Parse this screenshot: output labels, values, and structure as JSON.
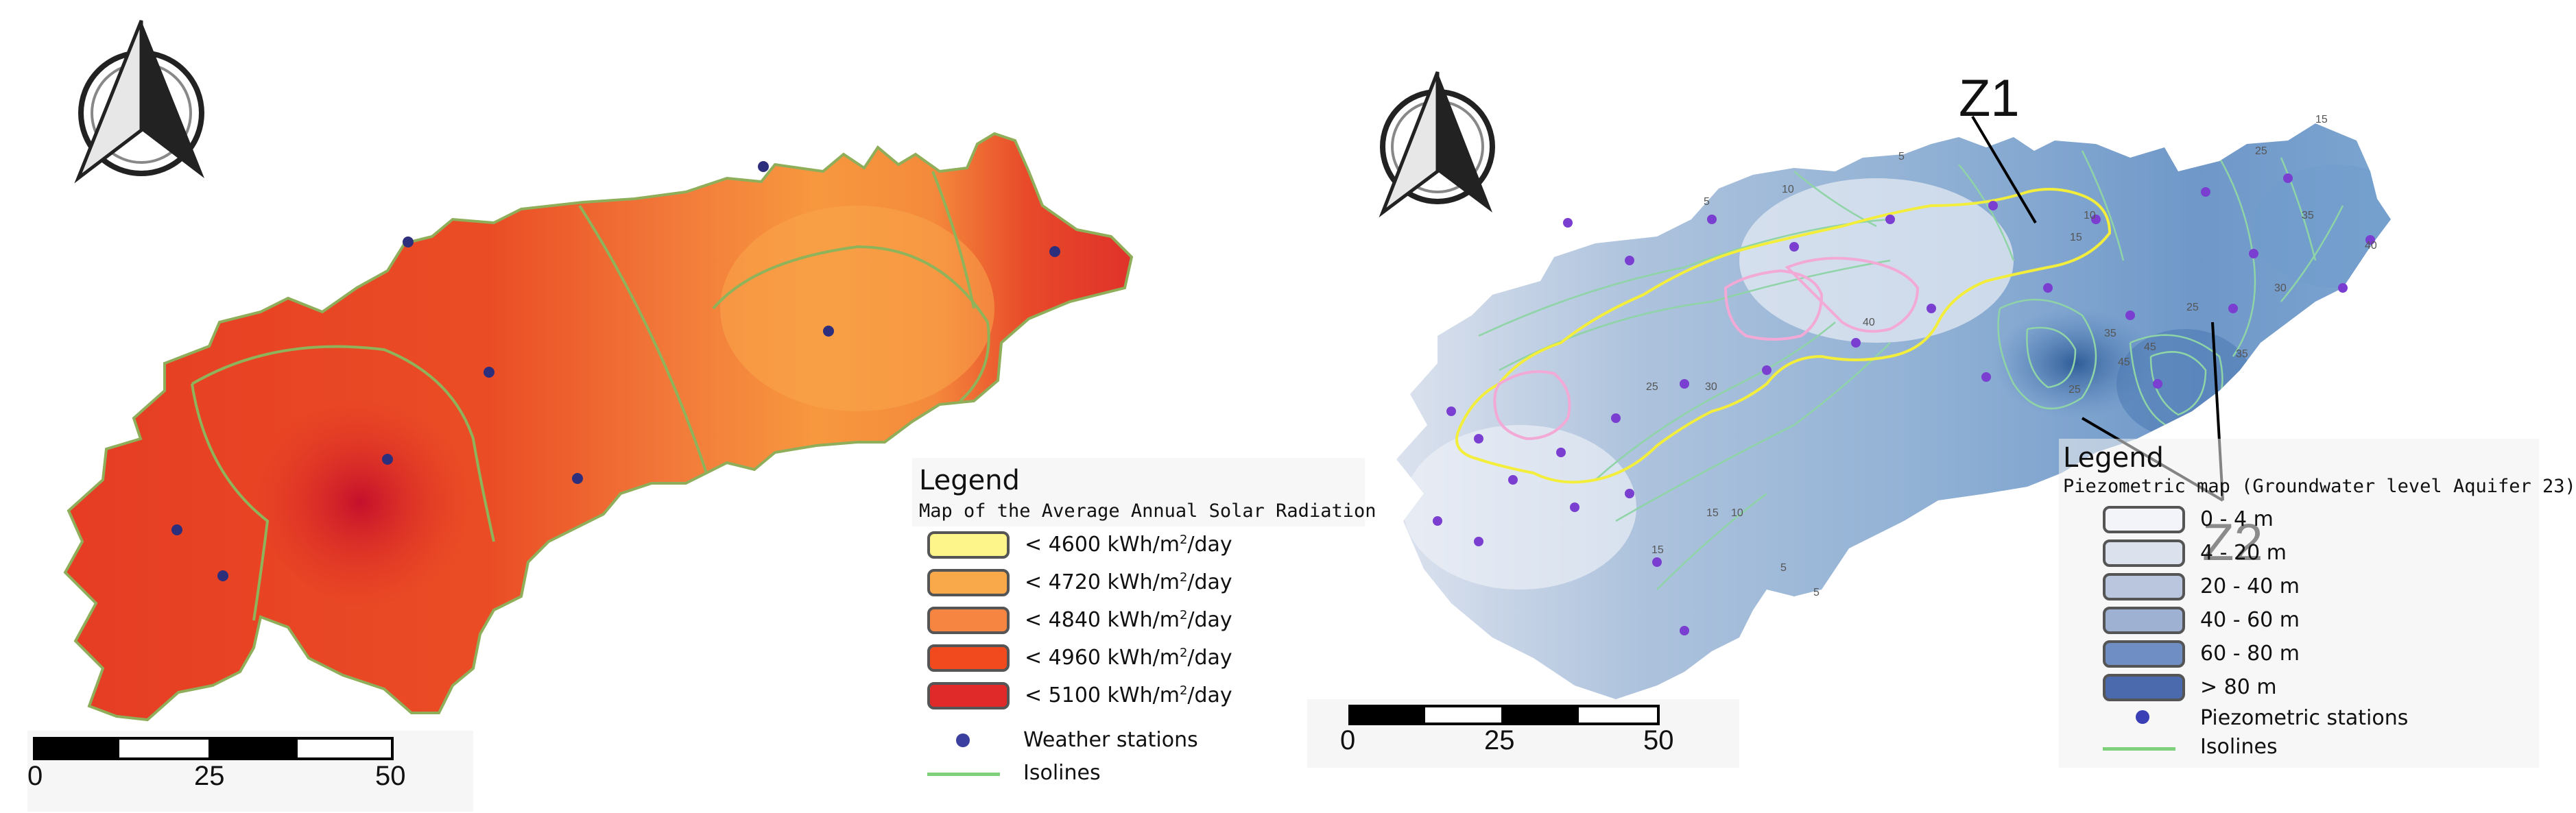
{
  "left_map": {
    "legend": {
      "title": "Legend",
      "subtitle": "Map of the Average Annual Solar Radiation",
      "classes": [
        {
          "prefix": "< 4600 kWh/m",
          "sup": "2",
          "suffix": "/day",
          "color": "#fdf58a"
        },
        {
          "prefix": "< 4720 kWh/m",
          "sup": "2",
          "suffix": "/day",
          "color": "#f9a84a"
        },
        {
          "prefix": "< 4840 kWh/m",
          "sup": "2",
          "suffix": "/day",
          "color": "#f58540"
        },
        {
          "prefix": "< 4960 kWh/m",
          "sup": "2",
          "suffix": "/day",
          "color": "#f04a1e"
        },
        {
          "prefix": "< 5100 kWh/m",
          "sup": "2",
          "suffix": "/day",
          "color": "#e02a2a"
        }
      ],
      "stations_label": "Weather stations",
      "isolines_label": "Isolines"
    },
    "scale": {
      "ticks": [
        "0",
        "25",
        "50"
      ]
    }
  },
  "right_map": {
    "legend": {
      "title": "Legend",
      "subtitle": "Piezometric map (Groundwater level Aquifer 23)",
      "classes": [
        {
          "label": "0 - 4 m",
          "color": "#f2f4f9"
        },
        {
          "label": "4 - 20 m",
          "color": "#dbe2ee"
        },
        {
          "label": "20 - 40 m",
          "color": "#b9c6dd"
        },
        {
          "label": "40 - 60 m",
          "color": "#9eb1d2"
        },
        {
          "label": "60 - 80 m",
          "color": "#6f8ec4"
        },
        {
          "label": "> 80 m",
          "color": "#4b6aad"
        }
      ],
      "stations_label": "Piezometric stations",
      "isolines_label": "Isolines"
    },
    "scale": {
      "ticks": [
        "0",
        "25",
        "50"
      ]
    },
    "zones": {
      "z1": "Z1",
      "z2": "Z2"
    },
    "isoline_labels": [
      "5",
      "10",
      "5",
      "15",
      "10",
      "25",
      "35",
      "15",
      "40",
      "45",
      "35",
      "25",
      "25",
      "30",
      "15",
      "10",
      "15",
      "5",
      "5",
      "40",
      "45",
      "25",
      "35",
      "30"
    ]
  },
  "colors": {
    "accent_red": "#d9232b",
    "accent_orange": "#f7943f",
    "water_blue": "#5a86bf",
    "isoline_green": "#7fd07a",
    "zone1_yellow": "#f3ee3c",
    "zone2_pink": "#f2a9d5"
  },
  "icons": [
    "north-arrow-icon",
    "north-arrow-icon"
  ]
}
